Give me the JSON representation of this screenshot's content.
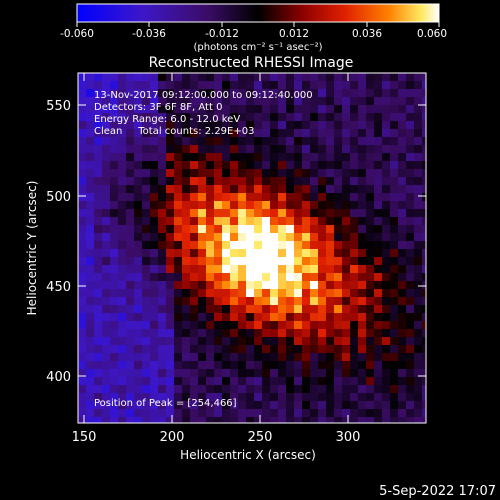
{
  "image": {
    "title": "Reconstructed RHESSI Image",
    "annotations": {
      "time_range": "13-Nov-2017 09:12:00.000 to 09:12:40.000",
      "detectors": "Detectors: 3F 6F 8F, Att 0",
      "energy_range": "Energy Range: 6.0 - 12.0 keV",
      "clean_counts": "Clean     Total counts: 2.29E+03",
      "peak_position": "Position of Peak = [254,466]"
    },
    "xlabel": "Heliocentric X (arcsec)",
    "ylabel": "Heliocentric Y (arcsec)",
    "x_ticks": [
      "150",
      "200",
      "250",
      "300"
    ],
    "y_ticks": [
      "400",
      "450",
      "500",
      "550"
    ],
    "colorbar": {
      "ticks": [
        "-0.060",
        "-0.036",
        "-0.012",
        "0.012",
        "0.036",
        "0.060"
      ],
      "unit_label": "(photons cm⁻² s⁻¹ asec⁻²)"
    },
    "footer_date": "5-Sep-2022 17:07",
    "colors": {
      "background": "#000000",
      "text": "#ffffff",
      "cmap_low": "#0000ff",
      "cmap_mid": "#000000",
      "cmap_high": "#ffffff"
    }
  }
}
